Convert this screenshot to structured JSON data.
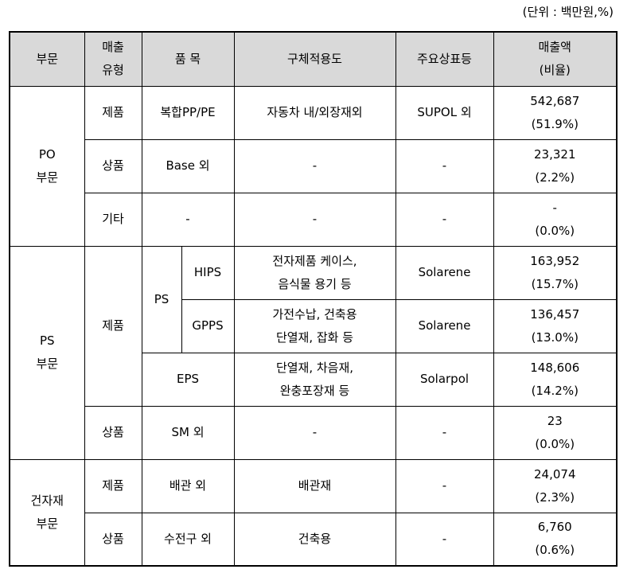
{
  "unit_note": "(단위 : 백만원,%)",
  "headers": {
    "division": "부문",
    "sales_type": [
      "매출",
      "유형"
    ],
    "item": "품 목",
    "usage": "구체적용도",
    "brand": "주요상표등",
    "sales": [
      "매출액",
      "(비율)"
    ]
  },
  "groups": {
    "po": [
      "PO",
      "부문"
    ],
    "ps": [
      "PS",
      "부문"
    ],
    "building": [
      "건자재",
      "부문"
    ]
  },
  "labels": {
    "product": "제품",
    "goods": "상품",
    "other": "기타",
    "ps_sub": "PS"
  },
  "rows": {
    "po_product": {
      "item": "복합PP/PE",
      "usage": [
        "자동차 내/외장재외"
      ],
      "brand": "SUPOL 외",
      "sales": "542,687",
      "ratio": "(51.9%)"
    },
    "po_goods": {
      "item": "Base 외",
      "usage": [
        "-"
      ],
      "brand": "-",
      "sales": "23,321",
      "ratio": "(2.2%)"
    },
    "po_other": {
      "item": "-",
      "usage": [
        "-"
      ],
      "brand": "-",
      "sales": "-",
      "ratio": "(0.0%)"
    },
    "ps_hips": {
      "item": "HIPS",
      "usage": [
        "전자제품 케이스,",
        "음식물 용기 등"
      ],
      "brand": "Solarene",
      "sales": "163,952",
      "ratio": "(15.7%)"
    },
    "ps_gpps": {
      "item": "GPPS",
      "usage": [
        "가전수납, 건축용",
        "단열재, 잡화 등"
      ],
      "brand": "Solarene",
      "sales": "136,457",
      "ratio": "(13.0%)"
    },
    "ps_eps": {
      "item": "EPS",
      "usage": [
        "단열재, 차음재,",
        "완충포장재 등"
      ],
      "brand": "Solarpol",
      "sales": "148,606",
      "ratio": "(14.2%)"
    },
    "ps_goods": {
      "item": "SM 외",
      "usage": [
        "-"
      ],
      "brand": "-",
      "sales": "23",
      "ratio": "(0.0%)"
    },
    "bm_product": {
      "item": "배관 외",
      "usage": [
        "배관재"
      ],
      "brand": "-",
      "sales": "24,074",
      "ratio": "(2.3%)"
    },
    "bm_goods": {
      "item": "수전구 외",
      "usage": [
        "건축용"
      ],
      "brand": "-",
      "sales": "6,760",
      "ratio": "(0.6%)"
    }
  }
}
